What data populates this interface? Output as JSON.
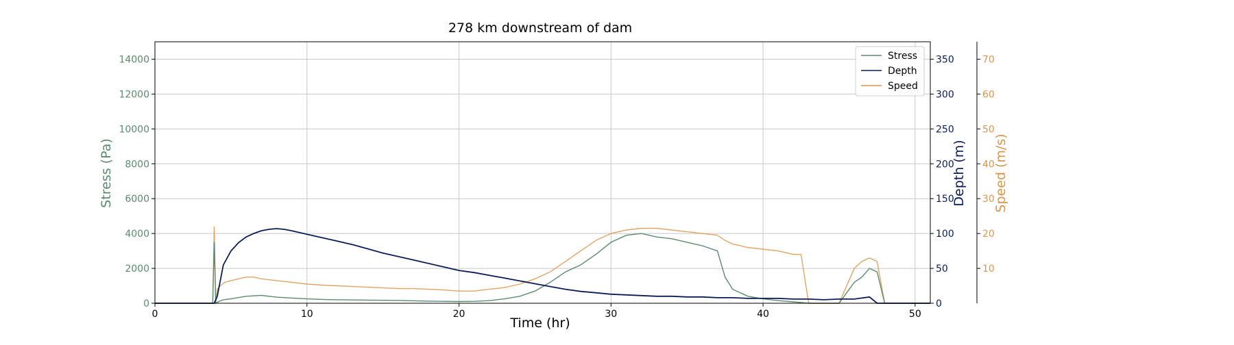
{
  "chart_data": {
    "type": "line",
    "title": "278 km downstream of dam",
    "xlabel": "Time (hr)",
    "xlim": [
      0,
      51
    ],
    "xticks": [
      0,
      10,
      20,
      30,
      40,
      50
    ],
    "legend_placement": "top-right",
    "grid": true,
    "axes": {
      "stress": {
        "label": "Stress (Pa)",
        "color": "#5a8a6e",
        "ylim": [
          0,
          15000
        ],
        "ticks": [
          0,
          2000,
          4000,
          6000,
          8000,
          10000,
          12000,
          14000
        ],
        "side": "left"
      },
      "depth": {
        "label": "Depth (m)",
        "color": "#0b1b55",
        "ylim": [
          0,
          375
        ],
        "ticks": [
          0,
          50,
          100,
          150,
          200,
          250,
          300,
          350
        ],
        "side": "right"
      },
      "speed": {
        "label": "Speed (m/s)",
        "color": "#d9954a",
        "ylim": [
          0,
          75
        ],
        "ticks": [
          10,
          20,
          30,
          40,
          50,
          60,
          70
        ],
        "side": "right-outer"
      }
    },
    "series": [
      {
        "name": "Stress",
        "axis": "stress",
        "color": "#5a8a6e",
        "x": [
          0,
          3.8,
          3.9,
          4.0,
          4.2,
          4.5,
          5,
          6,
          7,
          8,
          9,
          10,
          11,
          12,
          14,
          16,
          18,
          20,
          21,
          22,
          23,
          24,
          25,
          26,
          27,
          28,
          29,
          30,
          31,
          32,
          33,
          34,
          35,
          36,
          37,
          37.5,
          38,
          39,
          40,
          41,
          42,
          43,
          44,
          45,
          46,
          46.5,
          47,
          47.5,
          48,
          51
        ],
        "y": [
          0,
          0,
          3500,
          0,
          100,
          200,
          250,
          400,
          450,
          350,
          300,
          250,
          220,
          200,
          180,
          160,
          120,
          100,
          110,
          150,
          250,
          400,
          700,
          1200,
          1800,
          2200,
          2800,
          3500,
          3900,
          4000,
          3800,
          3700,
          3500,
          3300,
          3000,
          1500,
          800,
          400,
          250,
          150,
          80,
          0,
          0,
          0,
          1200,
          1500,
          2000,
          1800,
          0,
          0
        ]
      },
      {
        "name": "Depth",
        "axis": "depth",
        "color": "#0b1b55",
        "x": [
          0,
          3.9,
          4.1,
          4.5,
          5,
          5.5,
          6,
          6.5,
          7,
          7.5,
          8,
          8.5,
          9,
          10,
          11,
          12,
          13,
          14,
          15,
          16,
          17,
          18,
          19,
          20,
          21,
          22,
          23,
          24,
          25,
          26,
          27,
          28,
          29,
          30,
          31,
          32,
          33,
          34,
          35,
          36,
          37,
          38,
          39,
          40,
          41,
          42,
          43,
          44,
          45,
          46,
          47,
          47.5,
          51
        ],
        "y": [
          0,
          0,
          10,
          55,
          75,
          87,
          95,
          100,
          104,
          106,
          107,
          106,
          104,
          99,
          94,
          89,
          84,
          78,
          72,
          67,
          62,
          57,
          52,
          47,
          44,
          40,
          36,
          32,
          28,
          24,
          20,
          17,
          15,
          13,
          12,
          11,
          10,
          10,
          9,
          9,
          8,
          8,
          7,
          7,
          7,
          6,
          6,
          5,
          6,
          6,
          9,
          0,
          0
        ]
      },
      {
        "name": "Speed",
        "axis": "speed",
        "color": "#d9954a",
        "x": [
          0,
          3.8,
          3.9,
          4.0,
          4.1,
          4.3,
          4.6,
          5,
          5.5,
          6,
          6.5,
          7,
          8,
          9,
          10,
          11,
          12,
          13,
          14,
          15,
          16,
          17,
          18,
          19,
          20,
          21,
          22,
          23,
          24,
          25,
          26,
          27,
          28,
          29,
          30,
          31,
          32,
          33,
          34,
          35,
          36,
          37,
          37.5,
          38,
          39,
          40,
          41,
          42,
          42.5,
          43,
          44,
          45,
          46,
          46.5,
          47,
          47.5,
          48,
          51
        ],
        "y": [
          0,
          0,
          22,
          0,
          4,
          5,
          6,
          6.5,
          7,
          7.5,
          7.5,
          7,
          6.5,
          6,
          5.5,
          5.2,
          5,
          4.8,
          4.6,
          4.4,
          4.2,
          4.2,
          4,
          3.8,
          3.5,
          3.5,
          4,
          4.5,
          5.5,
          7,
          9,
          12,
          15,
          18,
          20,
          21,
          21.5,
          21.5,
          21,
          20.5,
          20,
          19.5,
          18,
          17,
          16,
          15.5,
          15,
          14,
          14,
          0,
          0,
          0,
          10,
          12,
          13,
          12,
          0,
          0
        ]
      }
    ]
  }
}
